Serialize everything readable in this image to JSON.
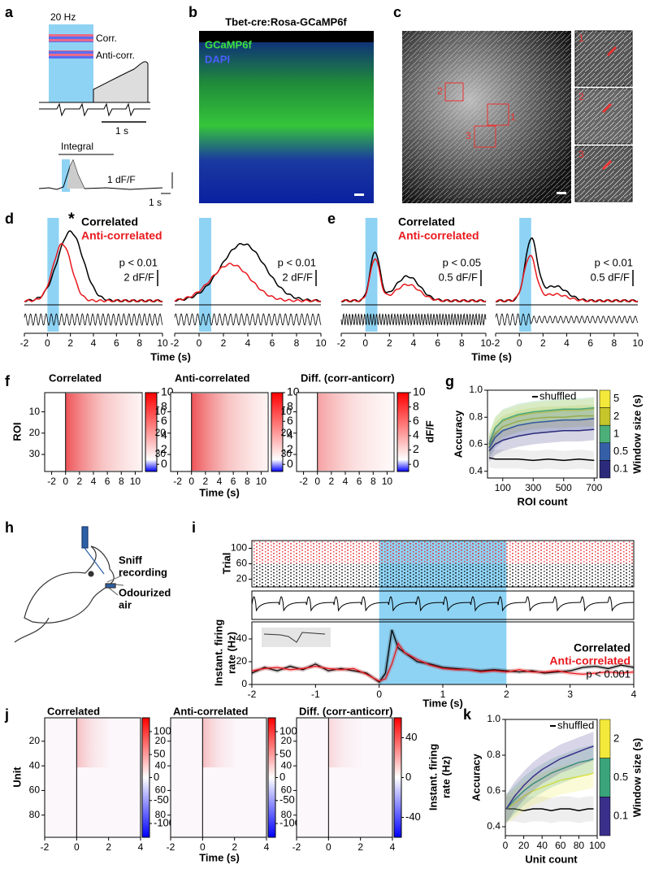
{
  "a": {
    "letter": "a",
    "freq": "20 Hz",
    "legend": [
      "Corr.",
      "Anti-corr."
    ],
    "time_bar": "1 s",
    "integral": "Integral",
    "scale_y": "1 dF/F",
    "scale_x": "1 s"
  },
  "b": {
    "letter": "b",
    "title": "Tbet-cre:Rosa-GCaMP6f",
    "channels": [
      {
        "name": "GCaMP6f",
        "color": "#3ee03e"
      },
      {
        "name": "DAPI",
        "color": "#4a5cff"
      }
    ]
  },
  "c": {
    "letter": "c",
    "rois": [
      "1",
      "2",
      "3"
    ]
  },
  "d": {
    "letter": "d",
    "marker": "*",
    "legend": [
      {
        "name": "Correlated",
        "color": "#000000"
      },
      {
        "name": "Anti-correlated",
        "color": "#e8191e"
      }
    ],
    "stats": [
      {
        "p": "p < 0.01",
        "scale": "2 dF/F"
      },
      {
        "p": "p < 0.01",
        "scale": "2 dF/F"
      }
    ],
    "xlim": [
      -2,
      10
    ],
    "xticks": [
      -2,
      0,
      2,
      4,
      6,
      8,
      10
    ]
  },
  "e": {
    "letter": "e",
    "legend": [
      {
        "name": "Correlated",
        "color": "#000000"
      },
      {
        "name": "Anti-correlated",
        "color": "#e8191e"
      }
    ],
    "stats": [
      {
        "p": "p < 0.05",
        "scale": "0.5 dF/F"
      },
      {
        "p": "p < 0.01",
        "scale": "0.5 dF/F"
      }
    ],
    "xlim": [
      -2,
      10
    ],
    "xticks": [
      -2,
      0,
      2,
      4,
      6,
      8,
      10
    ]
  },
  "de_xlabel": "Time (s)",
  "f": {
    "letter": "f",
    "maps": [
      {
        "title": "Correlated"
      },
      {
        "title": "Anti-correlated"
      },
      {
        "title": "Diff. (corr-anticorr)"
      }
    ],
    "ylabel": "ROI",
    "ylim": [
      1,
      38
    ],
    "yticks": [
      10,
      20,
      30
    ],
    "xlim": [
      -3,
      11
    ],
    "xticks": [
      -2,
      0,
      2,
      4,
      6,
      8,
      10
    ],
    "xlabel": "Time (s)",
    "cbar_lim": [
      -1,
      10
    ],
    "cbar_ticks": [
      0,
      2,
      4,
      6,
      8,
      10
    ],
    "cbar_label": "dF/F"
  },
  "g": {
    "letter": "g",
    "ylabel": "Accuracy",
    "xlabel": "ROI count",
    "xlim": [
      0,
      720
    ],
    "xticks": [
      100,
      300,
      500,
      700
    ],
    "ylim": [
      0.35,
      1.0
    ],
    "yticks": [
      0.4,
      0.6,
      0.8,
      {
        "value": 1,
        "label": "1.0"
      }
    ],
    "x": [
      10,
      50,
      100,
      200,
      300,
      400,
      500,
      600,
      700
    ],
    "shuffled": {
      "name": "shuffled",
      "color": "#000000",
      "values": [
        0.5,
        0.49,
        0.49,
        0.49,
        0.48,
        0.49,
        0.48,
        0.49,
        0.48
      ]
    },
    "series": [
      {
        "name": "5",
        "color": "#f2e93a",
        "values": [
          0.6,
          0.72,
          0.77,
          0.81,
          0.83,
          0.84,
          0.85,
          0.85,
          0.86
        ]
      },
      {
        "name": "2",
        "color": "#c6c52a",
        "values": [
          0.58,
          0.68,
          0.73,
          0.77,
          0.79,
          0.8,
          0.8,
          0.81,
          0.81
        ]
      },
      {
        "name": "1",
        "color": "#4caf7a",
        "values": [
          0.6,
          0.72,
          0.78,
          0.82,
          0.84,
          0.85,
          0.86,
          0.86,
          0.87
        ]
      },
      {
        "name": "0.5",
        "color": "#3560a8",
        "values": [
          0.57,
          0.65,
          0.7,
          0.74,
          0.76,
          0.77,
          0.78,
          0.78,
          0.79
        ]
      },
      {
        "name": "0.1",
        "color": "#2c2a7a",
        "values": [
          0.55,
          0.6,
          0.63,
          0.66,
          0.68,
          0.69,
          0.7,
          0.7,
          0.71
        ]
      }
    ],
    "cbar_label": "Window size (s)"
  },
  "h": {
    "letter": "h",
    "sniff": [
      "Sniff",
      "recording"
    ],
    "air": [
      "Odourized",
      "air"
    ]
  },
  "i": {
    "letter": "i",
    "raster": {
      "ylabel": "Trial",
      "ylim": [
        0,
        120
      ],
      "yticks": [
        20,
        60,
        100
      ]
    },
    "rate": {
      "ylabel": [
        "Instant. firing",
        "rate (Hz)"
      ],
      "ylim": [
        0,
        55
      ],
      "yticks": [
        0,
        20,
        40
      ],
      "xlim": [
        -2,
        4
      ],
      "xticks": [
        -2,
        -1,
        0,
        1,
        2,
        3,
        4
      ],
      "xlabel": "Time (s)",
      "p": "p < 0.001",
      "stim": [
        0,
        2
      ],
      "x": [
        -2,
        -1.8,
        -1.6,
        -1.4,
        -1.2,
        -1,
        -0.8,
        -0.6,
        -0.4,
        -0.2,
        0,
        0.1,
        0.2,
        0.3,
        0.4,
        0.6,
        0.8,
        1,
        1.2,
        1.4,
        1.6,
        1.8,
        2,
        2.2,
        2.4,
        2.6,
        2.8,
        3,
        3.2,
        3.4,
        3.6,
        3.8,
        4
      ],
      "series": [
        {
          "name": "Correlated",
          "color": "#000000",
          "values": [
            10,
            15,
            12,
            16,
            13,
            18,
            12,
            14,
            12,
            10,
            2,
            10,
            48,
            32,
            28,
            20,
            18,
            15,
            14,
            13,
            12,
            13,
            12,
            11,
            12,
            10,
            11,
            12,
            15,
            16,
            14,
            17,
            15
          ]
        },
        {
          "name": "Anti-correlated",
          "color": "#e8191e",
          "values": [
            12,
            14,
            15,
            13,
            14,
            16,
            14,
            13,
            14,
            9,
            3,
            5,
            18,
            36,
            28,
            22,
            17,
            14,
            13,
            13,
            11,
            12,
            11,
            13,
            11,
            11,
            12,
            10,
            9,
            10,
            11,
            10,
            11
          ]
        }
      ]
    }
  },
  "j": {
    "letter": "j",
    "maps": [
      {
        "title": "Correlated",
        "cbar_lim": [
          -130,
          130
        ],
        "cbar_ticks": [
          100,
          50,
          0,
          -50,
          -100
        ]
      },
      {
        "title": "Anti-correlated",
        "cbar_lim": [
          -130,
          130
        ],
        "cbar_ticks": [
          100,
          50,
          0,
          -50,
          -100
        ]
      },
      {
        "title": "Diff. (corr-anticorr)",
        "cbar_lim": [
          -60,
          60
        ],
        "cbar_ticks": [
          40,
          0,
          -40
        ]
      }
    ],
    "ylabel": "Unit",
    "ylim": [
      1,
      98
    ],
    "yticks": [
      20,
      40,
      60,
      80
    ],
    "xlim": [
      -2,
      4
    ],
    "xticks": [
      -2,
      0,
      2,
      4
    ],
    "xlabel": "Time (s)",
    "cbar_label": [
      "Instant. firing",
      "rate (Hz)"
    ]
  },
  "k": {
    "letter": "k",
    "ylabel": "Accuracy",
    "xlabel": "Unit count",
    "xlim": [
      0,
      100
    ],
    "xticks": [
      0,
      20,
      40,
      60,
      80,
      100
    ],
    "ylim": [
      0.35,
      1.0
    ],
    "yticks": [
      0.4,
      0.6,
      0.8,
      {
        "value": 1,
        "label": "1.0"
      }
    ],
    "x": [
      1,
      10,
      20,
      30,
      40,
      50,
      60,
      70,
      80,
      90,
      96
    ],
    "shuffled": {
      "name": "shuffled",
      "color": "#000000",
      "values": [
        0.5,
        0.5,
        0.49,
        0.5,
        0.5,
        0.49,
        0.5,
        0.5,
        0.49,
        0.5,
        0.5
      ]
    },
    "series": [
      {
        "name": "2",
        "color": "#f2e93a",
        "values": [
          0.5,
          0.53,
          0.57,
          0.6,
          0.62,
          0.64,
          0.66,
          0.67,
          0.68,
          0.69,
          0.7
        ]
      },
      {
        "name": "0.5",
        "color": "#3aa57a",
        "values": [
          0.5,
          0.55,
          0.6,
          0.64,
          0.67,
          0.7,
          0.72,
          0.74,
          0.76,
          0.77,
          0.78
        ]
      },
      {
        "name": "0.1",
        "color": "#3a2f8a",
        "values": [
          0.5,
          0.57,
          0.63,
          0.68,
          0.72,
          0.75,
          0.78,
          0.8,
          0.82,
          0.84,
          0.85
        ]
      }
    ],
    "cbar_label": "Window size (s)"
  }
}
